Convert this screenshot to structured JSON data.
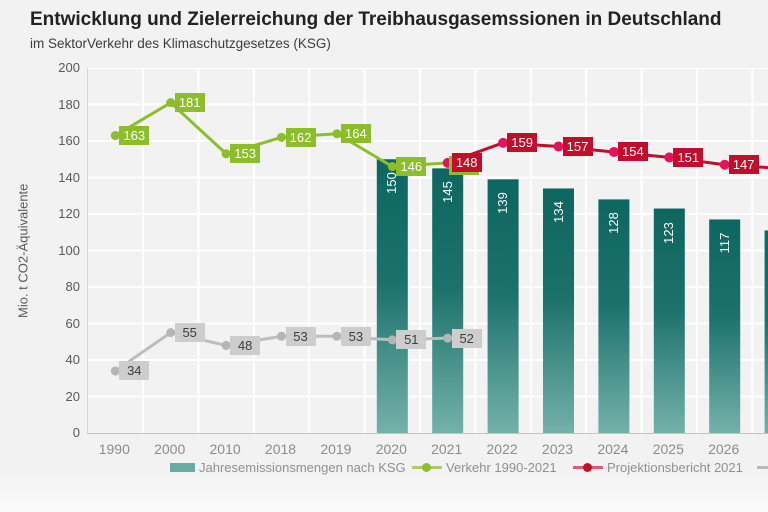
{
  "header": {
    "title": "Entwicklung und Zielerreichung der Treibhausgasemssionen in Deutschland",
    "subtitle": "im SektorVerkehr des Klimaschutzgesetzes (KSG)"
  },
  "chart_data": {
    "type": [
      "bar",
      "line"
    ],
    "title": "Entwicklung und Zielerreichung der Treibhausgasemssionen in Deutschland",
    "subtitle": "im SektorVerkehr des Klimaschutzgesetzes (KSG)",
    "ylabel": "Mio. t CO2-Äquivalente",
    "ylim": [
      0,
      200
    ],
    "ytick_step": 20,
    "grid": "on",
    "legend_position": "bottom",
    "categories": [
      "1990",
      "2000",
      "2010",
      "2018",
      "2019",
      "2020",
      "2021",
      "2022",
      "2023",
      "2024",
      "2025",
      "2026"
    ],
    "series": [
      {
        "name": "Jahresemissionsmengen nach KSG",
        "type": "bar",
        "start_index": 5,
        "values": [
          150,
          145,
          139,
          134,
          128,
          123,
          117
        ],
        "color_top": "#0d665f",
        "color_bottom": "#74b1aa",
        "label_color": "#ffffff"
      },
      {
        "name": "Verkehr 1990-2021",
        "type": "line",
        "start_index": 0,
        "values": [
          163,
          181,
          153,
          162,
          164,
          146,
          148
        ],
        "hide_label_indices": [
          6
        ],
        "color": "#8cbd2a",
        "dot_color": "#8cbd2a"
      },
      {
        "name": "Projektionsbericht 2021",
        "type": "line",
        "start_index": 6,
        "values": [
          148,
          159,
          157,
          154,
          151,
          147
        ],
        "color": "#c10e2b",
        "dot_color": "#e4145c"
      },
      {
        "name": "",
        "type": "line",
        "start_index": 0,
        "values": [
          34,
          55,
          48,
          53,
          53,
          51,
          52
        ],
        "color": "#bdbdbd",
        "dot_color": "#b5b5b5"
      }
    ],
    "clipped_edge": {
      "next_bar": 111,
      "next_projection": 145
    }
  },
  "colors": {
    "background": "#f2f2f2",
    "gridline": "#ffffff",
    "axis": "#c4c4c4",
    "legend_bar_swatch": "#69aaa4"
  }
}
